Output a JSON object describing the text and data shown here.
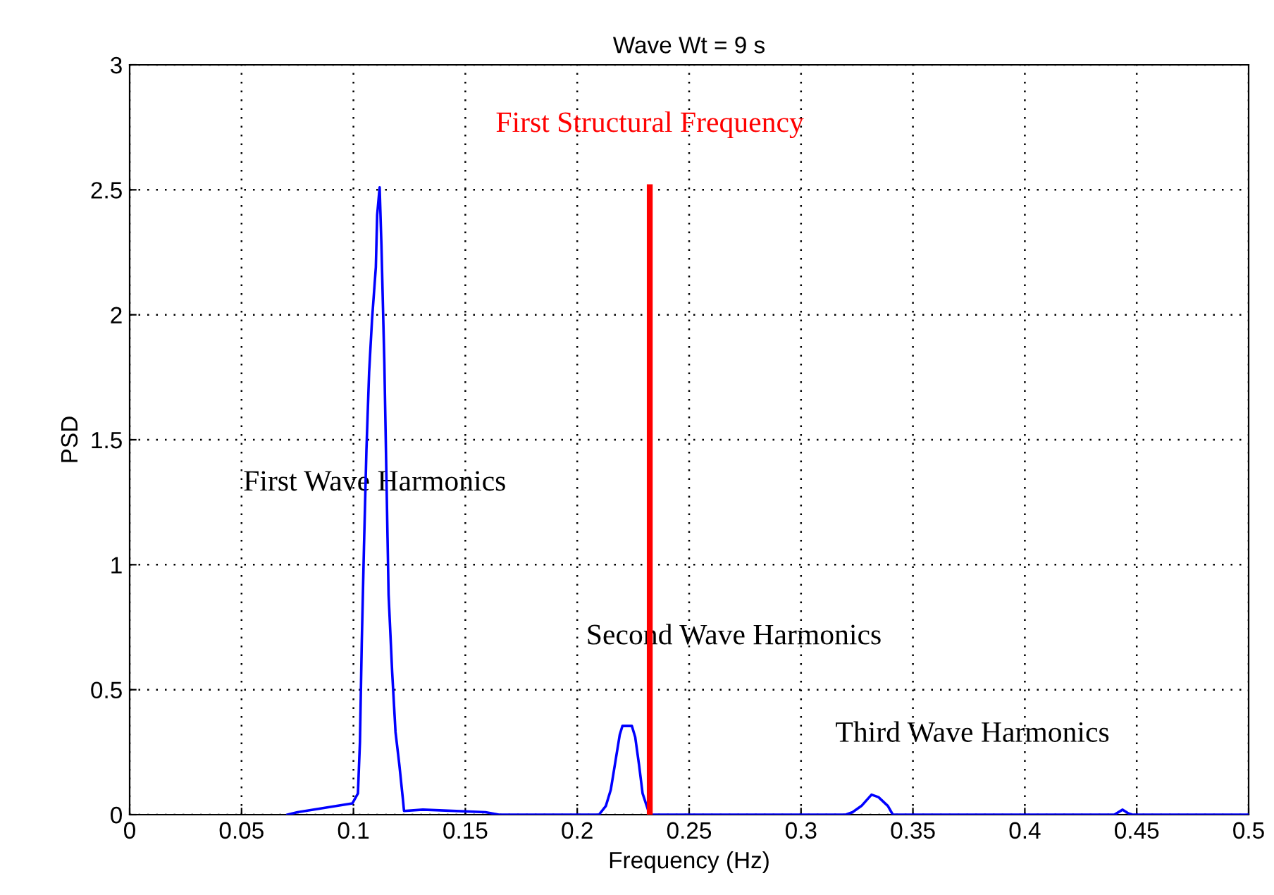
{
  "chart_data": {
    "type": "line",
    "title": "Wave Wt = 9 s",
    "xlabel": "Frequency (Hz)",
    "ylabel": "PSD",
    "x": [
      0.0705,
      0.075,
      0.0995,
      0.102,
      0.1029,
      0.1037,
      0.1047,
      0.1058,
      0.107,
      0.1083,
      0.11,
      0.1106,
      0.1117,
      0.1125,
      0.1138,
      0.1157,
      0.1173,
      0.1188,
      0.1205,
      0.122,
      0.1226,
      0.131,
      0.159,
      0.165,
      0.2097,
      0.2128,
      0.215,
      0.217,
      0.219,
      0.2202,
      0.2244,
      0.2259,
      0.2276,
      0.2292,
      0.2317,
      0.233,
      0.32,
      0.323,
      0.327,
      0.3315,
      0.3346,
      0.3388,
      0.341,
      0.44,
      0.4437,
      0.4463,
      0.448,
      0.5
    ],
    "series": [
      {
        "color": "#0000ff",
        "values": [
          0,
          0.01,
          0.045,
          0.085,
          0.29,
          0.68,
          1.07,
          1.46,
          1.77,
          1.98,
          2.19,
          2.4,
          2.51,
          2.28,
          1.81,
          0.88,
          0.57,
          0.33,
          0.2,
          0.07,
          0.015,
          0.02,
          0.01,
          0,
          0,
          0.035,
          0.1,
          0.21,
          0.32,
          0.355,
          0.355,
          0.31,
          0.2,
          0.085,
          0.017,
          0,
          0,
          0.01,
          0.035,
          0.08,
          0.07,
          0.035,
          0,
          0,
          0.02,
          0.005,
          0,
          0
        ]
      }
    ],
    "xlim": [
      0,
      0.5
    ],
    "ylim": [
      0,
      3
    ],
    "xticks": [
      0,
      0.05,
      0.1,
      0.15,
      0.2,
      0.25,
      0.3,
      0.35,
      0.4,
      0.45,
      0.5
    ],
    "yticks": [
      0,
      0.5,
      1,
      1.5,
      2,
      2.5,
      3
    ],
    "grid": true,
    "line_style": "solid",
    "marker": "none",
    "ref_lines": [
      {
        "axis": "x",
        "value": 0.2324,
        "label": "First Structural Frequency",
        "color": "#ff0000",
        "line_style": "solid"
      }
    ],
    "annotations": [
      "First Wave Harmonics",
      "Second Wave Harmonics",
      "Third Wave Harmonics"
    ]
  }
}
